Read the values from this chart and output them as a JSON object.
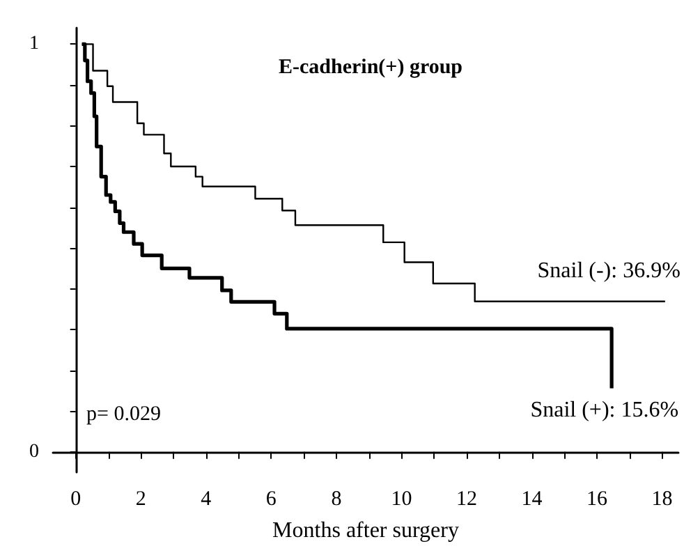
{
  "chart_data": {
    "type": "step",
    "title": "E-cadherin(+) group",
    "xlabel": "Months after surgery",
    "xlim": [
      -0.7,
      18.5
    ],
    "ylim": [
      -0.05,
      1.04
    ],
    "xticks": [
      0,
      {
        "value": 1,
        "label": null
      },
      2,
      {
        "value": 3,
        "label": null
      },
      4,
      {
        "value": 5,
        "label": null
      },
      6,
      {
        "value": 7,
        "label": null
      },
      8,
      {
        "value": 9,
        "label": null
      },
      10,
      {
        "value": 11,
        "label": null
      },
      12,
      {
        "value": 13,
        "label": null
      },
      14,
      {
        "value": 15,
        "label": null
      },
      16,
      {
        "value": 17,
        "label": null
      },
      18
    ],
    "yticks": [
      0,
      {
        "value": 0.1,
        "label": null
      },
      {
        "value": 0.2,
        "label": null
      },
      {
        "value": 0.3,
        "label": null
      },
      {
        "value": 0.4,
        "label": null
      },
      {
        "value": 0.5,
        "label": null
      },
      {
        "value": 0.6,
        "label": null
      },
      {
        "value": 0.7,
        "label": null
      },
      {
        "value": 0.8,
        "label": null
      },
      {
        "value": 0.9,
        "label": null
      },
      1
    ],
    "grid": false,
    "marker": "none",
    "line_style": "solid",
    "series": [
      {
        "color": "#000000",
        "x": [
          0.19,
          0.53,
          0.97,
          1.14,
          1.89,
          2.09,
          2.71,
          2.92,
          3.68,
          3.89,
          5.51,
          6.34,
          6.74,
          9.44,
          10.09,
          10.97,
          12.25,
          18.09
        ],
        "values": [
          1.0,
          0.935,
          0.897,
          0.858,
          0.806,
          0.778,
          0.732,
          0.7,
          0.675,
          0.651,
          0.621,
          0.592,
          0.556,
          0.514,
          0.465,
          0.413,
          0.369,
          0.369
        ]
      },
      {
        "color": "#000000",
        "x": [
          0.19,
          0.28,
          0.36,
          0.47,
          0.57,
          0.64,
          0.78,
          0.93,
          1.07,
          1.21,
          1.35,
          1.47,
          1.78,
          2.04,
          2.64,
          3.49,
          4.49,
          4.77,
          6.1,
          6.48,
          16.45
        ],
        "values": [
          1.0,
          0.96,
          0.909,
          0.88,
          0.823,
          0.749,
          0.675,
          0.63,
          0.613,
          0.59,
          0.561,
          0.539,
          0.51,
          0.482,
          0.45,
          0.427,
          0.396,
          0.368,
          0.339,
          0.302,
          0.156
        ]
      }
    ],
    "annotations": [
      "p= 0.029",
      {
        "text": "Snail (-): 36.9%",
        "x": 18.09,
        "y": 0.369
      },
      {
        "text": "Snail (+): 15.6%",
        "x": 16.45,
        "y": 0.156
      }
    ]
  }
}
